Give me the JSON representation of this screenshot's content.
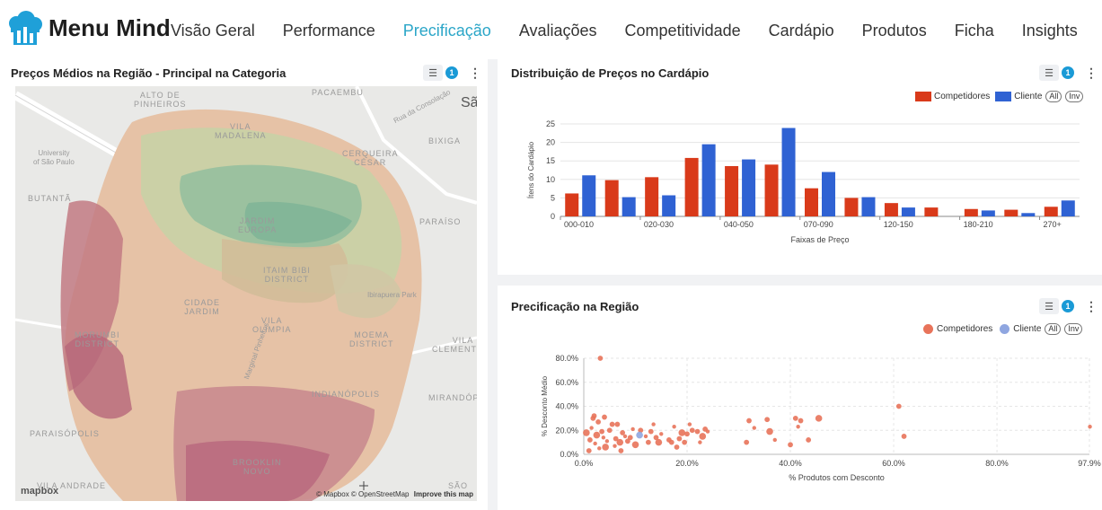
{
  "app": {
    "brand": "Menu Mind"
  },
  "nav": [
    "Visão Geral",
    "Performance",
    "Precificação",
    "Avaliações",
    "Competitividade",
    "Cardápio",
    "Produtos",
    "Ficha",
    "Insights"
  ],
  "nav_active": "Precificação",
  "map_card": {
    "title": "Preços Médios na Região - Principal na Categoria",
    "filter_count": "1",
    "labels": [
      "ALTO DE\nPINHEIROS",
      "PACAEMBU",
      "Rua da Consolação",
      "Sã",
      "University\nof São Paulo",
      "VILA\nMADALENA",
      "CERQUEIRA\nCÉSAR",
      "BIXIGA",
      "BUTANTÃ",
      "JARDIM\nEUROPA",
      "PARAÍSO",
      "ITAIM BIBI\nDISTRICT",
      "Ibirapuera Park",
      "CIDADE\nJARDIM",
      "VILA\nOLÍMPIA",
      "MORUMBI\nDISTRICT",
      "Marginal Pinheiros",
      "MOEMA\nDISTRICT",
      "VILA\nCLEMENTINO",
      "INDIANÓPOLIS",
      "MIRANDÓPOL",
      "PARAISÓPOLIS",
      "BROOKLIN\nNOVO",
      "VILA ANDRADE",
      "SÃO"
    ],
    "logo": "mapbox",
    "attribution": "© Mapbox © OpenStreetMap",
    "improve": "Improve this map"
  },
  "dist_card": {
    "title": "Distribuição de Preços no Cardápio",
    "filter_count": "1",
    "legend_all": "All",
    "legend_inv": "Inv"
  },
  "region_card": {
    "title": "Precificação na Região",
    "filter_count": "1",
    "legend_all": "All",
    "legend_inv": "Inv"
  },
  "chart_data": [
    {
      "type": "bar",
      "categories": [
        "000-010",
        "010-020",
        "020-030",
        "030-040",
        "040-050",
        "050-070",
        "070-090",
        "090-120",
        "120-150",
        "150-180",
        "180-210",
        "210-270",
        "270+"
      ],
      "tick_labels": [
        "000-010",
        "020-030",
        "040-050",
        "070-090",
        "120-150",
        "180-210",
        "270+"
      ],
      "series": [
        {
          "name": "Competidores",
          "color": "#d93a1a",
          "values": [
            6.2,
            9.8,
            10.6,
            15.8,
            13.6,
            14.0,
            7.6,
            5.0,
            3.6,
            2.4,
            2.0,
            1.8,
            2.6
          ]
        },
        {
          "name": "Cliente",
          "color": "#2f62d3",
          "values": [
            11.1,
            5.2,
            5.7,
            19.5,
            15.4,
            23.9,
            12.0,
            5.2,
            2.4,
            0,
            1.6,
            0.9,
            4.3
          ]
        }
      ],
      "xlabel": "Faixas de Preço",
      "ylabel": "Ítens do Cardápio",
      "yticks": [
        0,
        5,
        10,
        15,
        20,
        25
      ],
      "ylim": [
        0,
        25
      ]
    },
    {
      "type": "scatter",
      "series": [
        {
          "name": "Competidores",
          "color": "#e8735a",
          "points": [
            [
              0.5,
              18
            ],
            [
              1.0,
              3
            ],
            [
              1.2,
              12
            ],
            [
              1.5,
              22
            ],
            [
              1.8,
              30
            ],
            [
              2.0,
              32
            ],
            [
              2.2,
              9
            ],
            [
              2.5,
              16
            ],
            [
              2.8,
              27
            ],
            [
              3.0,
              5
            ],
            [
              3.2,
              80
            ],
            [
              3.5,
              19
            ],
            [
              3.8,
              14
            ],
            [
              4.0,
              31
            ],
            [
              4.2,
              6
            ],
            [
              4.5,
              11
            ],
            [
              5.0,
              20
            ],
            [
              5.5,
              25
            ],
            [
              6.0,
              7
            ],
            [
              6.2,
              13
            ],
            [
              6.5,
              25
            ],
            [
              7.0,
              10
            ],
            [
              7.2,
              3
            ],
            [
              7.5,
              18
            ],
            [
              8.0,
              15
            ],
            [
              8.5,
              11
            ],
            [
              9.0,
              14
            ],
            [
              9.5,
              21
            ],
            [
              10.0,
              8
            ],
            [
              11.0,
              20
            ],
            [
              12.0,
              15
            ],
            [
              12.5,
              10
            ],
            [
              13.0,
              19
            ],
            [
              13.5,
              25
            ],
            [
              14.0,
              14
            ],
            [
              14.5,
              10
            ],
            [
              15.0,
              17
            ],
            [
              16.5,
              12
            ],
            [
              17.0,
              10
            ],
            [
              17.5,
              23
            ],
            [
              18.0,
              6
            ],
            [
              18.5,
              13
            ],
            [
              19.0,
              18
            ],
            [
              19.5,
              10
            ],
            [
              20.0,
              17
            ],
            [
              20.5,
              25
            ],
            [
              21.0,
              20
            ],
            [
              22.0,
              19
            ],
            [
              22.5,
              10
            ],
            [
              23.0,
              15
            ],
            [
              23.5,
              21
            ],
            [
              24.0,
              19
            ],
            [
              31.5,
              10
            ],
            [
              32.0,
              28
            ],
            [
              33.0,
              22
            ],
            [
              35.5,
              29
            ],
            [
              36.0,
              19
            ],
            [
              37.0,
              12
            ],
            [
              40.0,
              8
            ],
            [
              41.0,
              30
            ],
            [
              41.5,
              23
            ],
            [
              42.0,
              28
            ],
            [
              43.5,
              12
            ],
            [
              45.5,
              30
            ],
            [
              61.0,
              40
            ],
            [
              62.0,
              15
            ],
            [
              98.0,
              23
            ]
          ]
        },
        {
          "name": "Cliente",
          "color": "#8fa6e0",
          "points": [
            [
              10.8,
              16
            ]
          ]
        }
      ],
      "xlabel": "% Produtos com Desconto",
      "ylabel": "% Desconto Médio",
      "xticks": [
        "0.0%",
        "20.0%",
        "40.0%",
        "60.0%",
        "80.0%",
        "97.9%"
      ],
      "yticks": [
        "0.0%",
        "20.0%",
        "40.0%",
        "60.0%",
        "80.0%"
      ],
      "xlim": [
        0,
        97.9
      ],
      "ylim": [
        0,
        80
      ]
    }
  ]
}
